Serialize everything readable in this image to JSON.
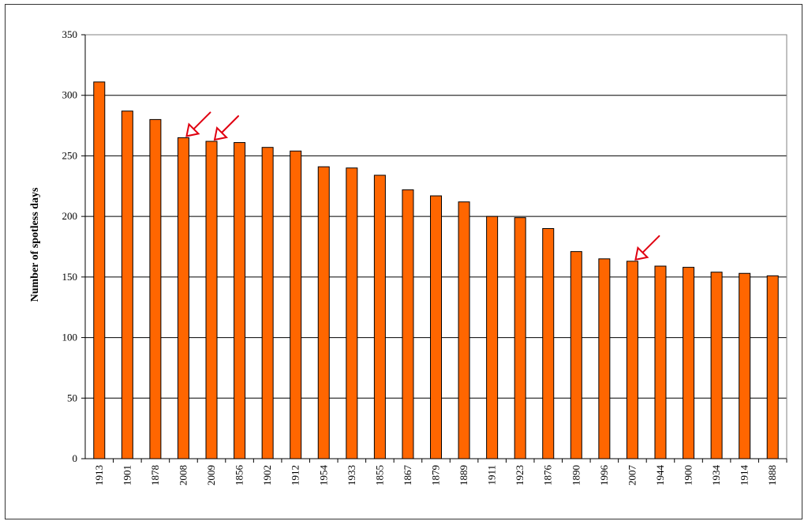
{
  "colors": {
    "bar_fill": "#FF6600",
    "bar_stroke": "#000000",
    "grid": "#000000",
    "arrow": "#E00010"
  },
  "chart_data": {
    "type": "bar",
    "title": "",
    "xlabel": "",
    "ylabel": "Number of spotless days",
    "ylim": [
      0,
      350
    ],
    "yticks": [
      0,
      50,
      100,
      150,
      200,
      250,
      300,
      350
    ],
    "grid": true,
    "legend": "none",
    "categories": [
      "1913",
      "1901",
      "1878",
      "2008",
      "2009",
      "1856",
      "1902",
      "1912",
      "1954",
      "1933",
      "1855",
      "1867",
      "1879",
      "1889",
      "1911",
      "1923",
      "1876",
      "1890",
      "1996",
      "2007",
      "1944",
      "1900",
      "1934",
      "1914",
      "1888"
    ],
    "values": [
      311,
      287,
      280,
      265,
      262,
      261,
      257,
      254,
      241,
      240,
      234,
      222,
      217,
      212,
      200,
      199,
      190,
      171,
      165,
      163,
      159,
      158,
      154,
      153,
      151
    ],
    "annotations": [
      {
        "type": "arrow",
        "category": "2008",
        "icon": "red-arrow-icon"
      },
      {
        "type": "arrow",
        "category": "2009",
        "icon": "red-arrow-icon"
      },
      {
        "type": "arrow",
        "category": "2007",
        "icon": "red-arrow-icon"
      }
    ]
  }
}
